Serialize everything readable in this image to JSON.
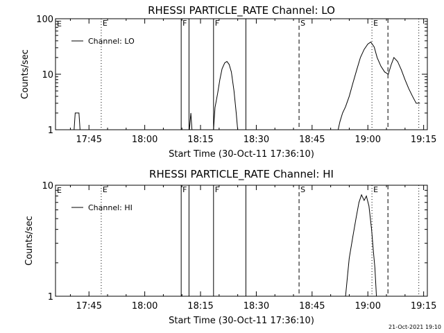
{
  "footer_timestamp": "21-Oct-2021 19:10",
  "chart_data": [
    {
      "type": "line",
      "title": "RHESSI PARTICLE_RATE Channel: LO",
      "xlabel": "Start Time (30-Oct-11 17:36:10)",
      "ylabel": "Counts/sec",
      "yscale": "log",
      "xlim": [
        "17:36",
        "19:16"
      ],
      "ylim": [
        1,
        100
      ],
      "x_ticks": [
        "17:45",
        "18:00",
        "18:15",
        "18:30",
        "18:45",
        "19:00",
        "19:15"
      ],
      "y_ticks": [
        "1",
        "10",
        "100"
      ],
      "legend": {
        "position": "top-left",
        "label": "Channel: LO"
      },
      "series": [
        {
          "name": "Channel: LO",
          "points": [
            [
              "17:41.0",
              1
            ],
            [
              "17:41.3",
              2
            ],
            [
              "17:42.3",
              2
            ],
            [
              "17:42.6",
              1
            ],
            [
              "18:12.0",
              1
            ],
            [
              "18:12.4",
              2
            ],
            [
              "18:12.7",
              1
            ],
            [
              "18:18.5",
              1
            ],
            [
              "18:18.9",
              2.5
            ],
            [
              "18:19.6",
              4.5
            ],
            [
              "18:20.2",
              8
            ],
            [
              "18:20.8",
              12.5
            ],
            [
              "18:21.5",
              16
            ],
            [
              "18:22.1",
              17
            ],
            [
              "18:22.7",
              15
            ],
            [
              "18:23.3",
              11
            ],
            [
              "18:24.0",
              5
            ],
            [
              "18:24.6",
              2
            ],
            [
              "18:25.0",
              1
            ],
            [
              "18:52.0",
              1
            ],
            [
              "18:52.5",
              1.4
            ],
            [
              "18:53.2",
              2
            ],
            [
              "18:54.0",
              2.6
            ],
            [
              "18:55.0",
              4
            ],
            [
              "18:56.0",
              7
            ],
            [
              "18:57.0",
              12
            ],
            [
              "18:58.0",
              20
            ],
            [
              "18:59.0",
              28
            ],
            [
              "19:00.0",
              35
            ],
            [
              "19:00.8",
              38
            ],
            [
              "19:01.7",
              31
            ],
            [
              "19:02.5",
              20
            ],
            [
              "19:03.5",
              14
            ],
            [
              "19:04.5",
              11
            ],
            [
              "19:05.5",
              10
            ],
            [
              "19:06.3",
              15
            ],
            [
              "19:07.0",
              20
            ],
            [
              "19:08.0",
              17
            ],
            [
              "19:09.0",
              12
            ],
            [
              "19:10.0",
              8
            ],
            [
              "19:11.0",
              5.5
            ],
            [
              "19:12.0",
              4
            ],
            [
              "19:13.0",
              3
            ],
            [
              "19:14.0",
              3
            ]
          ]
        }
      ],
      "markers": [
        {
          "time": "17:48.3",
          "style": "dotted",
          "label": "E"
        },
        {
          "time": "18:09.8",
          "style": "solid",
          "label": "F"
        },
        {
          "time": "18:11.9",
          "style": "solid",
          "label": ""
        },
        {
          "time": "18:18.5",
          "style": "solid",
          "label": "F"
        },
        {
          "time": "18:27.2",
          "style": "solid",
          "label": ""
        },
        {
          "time": "18:41.5",
          "style": "dashed",
          "label": "S"
        },
        {
          "time": "19:01.1",
          "style": "dotted",
          "label": "E"
        },
        {
          "time": "19:05.4",
          "style": "dashed",
          "label": ""
        },
        {
          "time": "19:13.7",
          "style": "dotted",
          "label": ""
        }
      ],
      "edge_labels": [
        "E"
      ]
    },
    {
      "type": "line",
      "title": "RHESSI PARTICLE_RATE Channel: HI",
      "xlabel": "Start Time (30-Oct-11 17:36:10)",
      "ylabel": "Counts/sec",
      "yscale": "log",
      "xlim": [
        "17:36",
        "19:16"
      ],
      "ylim": [
        1,
        10
      ],
      "x_ticks": [
        "17:45",
        "18:00",
        "18:15",
        "18:30",
        "18:45",
        "19:00",
        "19:15"
      ],
      "y_ticks": [
        "1",
        "10"
      ],
      "legend": {
        "position": "top-left",
        "label": "Channel: HI"
      },
      "series": [
        {
          "name": "Channel: HI",
          "points": [
            [
              "18:54.0",
              1
            ],
            [
              "18:54.5",
              1.5
            ],
            [
              "18:55.0",
              2.2
            ],
            [
              "18:56.0",
              3.5
            ],
            [
              "18:56.8",
              5
            ],
            [
              "18:57.6",
              7
            ],
            [
              "18:58.3",
              8.2
            ],
            [
              "18:59.0",
              7.3
            ],
            [
              "18:59.6",
              8
            ],
            [
              "19:00.3",
              6.5
            ],
            [
              "19:01.0",
              4
            ],
            [
              "19:01.5",
              2.5
            ],
            [
              "19:01.9",
              1.8
            ],
            [
              "19:02.3",
              1
            ]
          ]
        }
      ],
      "markers": [
        {
          "time": "17:48.3",
          "style": "dotted",
          "label": "E"
        },
        {
          "time": "18:09.8",
          "style": "solid",
          "label": "F"
        },
        {
          "time": "18:11.9",
          "style": "solid",
          "label": ""
        },
        {
          "time": "18:18.5",
          "style": "solid",
          "label": "F"
        },
        {
          "time": "18:27.2",
          "style": "solid",
          "label": ""
        },
        {
          "time": "18:41.5",
          "style": "dashed",
          "label": "S"
        },
        {
          "time": "19:01.1",
          "style": "dotted",
          "label": "E"
        },
        {
          "time": "19:05.4",
          "style": "dashed",
          "label": ""
        },
        {
          "time": "19:13.7",
          "style": "dotted",
          "label": ""
        }
      ],
      "edge_labels": [
        "E"
      ]
    }
  ]
}
